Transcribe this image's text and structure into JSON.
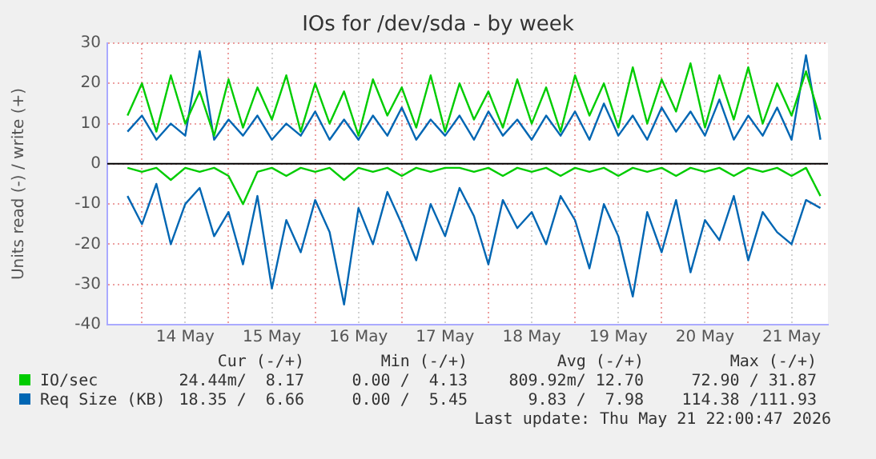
{
  "chart_data": {
    "type": "line",
    "title": "IOs for /dev/sda - by week",
    "ylabel": "Units read (-) / write (+)",
    "x": [
      "2026-05-13T20:00",
      "2026-05-14T00:00",
      "2026-05-14T04:00",
      "2026-05-14T08:00",
      "2026-05-14T12:00",
      "2026-05-14T16:00",
      "2026-05-14T20:00",
      "2026-05-15T00:00",
      "2026-05-15T04:00",
      "2026-05-15T08:00",
      "2026-05-15T12:00",
      "2026-05-15T16:00",
      "2026-05-15T20:00",
      "2026-05-16T00:00",
      "2026-05-16T04:00",
      "2026-05-16T08:00",
      "2026-05-16T12:00",
      "2026-05-16T16:00",
      "2026-05-16T20:00",
      "2026-05-17T00:00",
      "2026-05-17T04:00",
      "2026-05-17T08:00",
      "2026-05-17T12:00",
      "2026-05-17T16:00",
      "2026-05-17T20:00",
      "2026-05-18T00:00",
      "2026-05-18T04:00",
      "2026-05-18T08:00",
      "2026-05-18T12:00",
      "2026-05-18T16:00",
      "2026-05-18T20:00",
      "2026-05-19T00:00",
      "2026-05-19T04:00",
      "2026-05-19T08:00",
      "2026-05-19T12:00",
      "2026-05-19T16:00",
      "2026-05-19T20:00",
      "2026-05-20T00:00",
      "2026-05-20T04:00",
      "2026-05-20T08:00",
      "2026-05-20T12:00",
      "2026-05-20T16:00",
      "2026-05-20T20:00",
      "2026-05-21T00:00",
      "2026-05-21T04:00",
      "2026-05-21T08:00",
      "2026-05-21T12:00",
      "2026-05-21T16:00",
      "2026-05-21T20:00"
    ],
    "series": [
      {
        "name": "IO/sec",
        "color": "#00cc00",
        "values": [
          12,
          20,
          8,
          22,
          10,
          18,
          7,
          21,
          9,
          19,
          11,
          22,
          8,
          20,
          10,
          18,
          7,
          21,
          12,
          19,
          9,
          22,
          8,
          20,
          11,
          18,
          9,
          21,
          10,
          19,
          8,
          22,
          12,
          20,
          9,
          24,
          10,
          21,
          13,
          25,
          9,
          22,
          11,
          24,
          10,
          20,
          12,
          23,
          11
        ]
      },
      {
        "color": "#00cc00",
        "values": [
          -1,
          -2,
          -1,
          -4,
          -1,
          -2,
          -1,
          -3,
          -10,
          -2,
          -1,
          -3,
          -1,
          -2,
          -1,
          -4,
          -1,
          -2,
          -1,
          -3,
          -1,
          -2,
          -1,
          -1,
          -2,
          -1,
          -3,
          -1,
          -2,
          -1,
          -3,
          -1,
          -2,
          -1,
          -3,
          -1,
          -2,
          -1,
          -3,
          -1,
          -2,
          -1,
          -3,
          -1,
          -2,
          -1,
          -3,
          -1,
          -8
        ]
      },
      {
        "name": "Req Size (KB)",
        "color": "#0066b3",
        "values": [
          8,
          12,
          6,
          10,
          7,
          28,
          6,
          11,
          7,
          12,
          6,
          10,
          7,
          13,
          6,
          11,
          6,
          12,
          7,
          14,
          6,
          11,
          7,
          12,
          6,
          13,
          7,
          11,
          6,
          12,
          7,
          13,
          6,
          15,
          7,
          12,
          6,
          14,
          8,
          13,
          7,
          16,
          6,
          12,
          7,
          14,
          6,
          27,
          6
        ]
      },
      {
        "color": "#0066b3",
        "values": [
          -8,
          -15,
          -5,
          -20,
          -10,
          -6,
          -18,
          -12,
          -25,
          -8,
          -31,
          -14,
          -22,
          -9,
          -17,
          -35,
          -11,
          -20,
          -7,
          -15,
          -24,
          -10,
          -18,
          -6,
          -13,
          -25,
          -9,
          -16,
          -12,
          -20,
          -8,
          -14,
          -26,
          -10,
          -18,
          -33,
          -12,
          -22,
          -9,
          -27,
          -14,
          -19,
          -8,
          -24,
          -12,
          -17,
          -20,
          -9,
          -11
        ]
      }
    ],
    "xlim": [
      "2026-05-13T14:24",
      "2026-05-21T22:05"
    ],
    "xticks": [
      {
        "value": "2026-05-14T00:00",
        "label": null
      },
      {
        "value": "2026-05-14T12:00",
        "label": "14 May"
      },
      {
        "value": "2026-05-15T00:00",
        "label": null
      },
      {
        "value": "2026-05-15T12:00",
        "label": "15 May"
      },
      {
        "value": "2026-05-16T00:00",
        "label": null
      },
      {
        "value": "2026-05-16T12:00",
        "label": "16 May"
      },
      {
        "value": "2026-05-17T00:00",
        "label": null
      },
      {
        "value": "2026-05-17T12:00",
        "label": "17 May"
      },
      {
        "value": "2026-05-18T00:00",
        "label": null
      },
      {
        "value": "2026-05-18T12:00",
        "label": "18 May"
      },
      {
        "value": "2026-05-19T00:00",
        "label": null
      },
      {
        "value": "2026-05-19T12:00",
        "label": "19 May"
      },
      {
        "value": "2026-05-20T00:00",
        "label": null
      },
      {
        "value": "2026-05-20T12:00",
        "label": "20 May"
      },
      {
        "value": "2026-05-21T00:00",
        "label": null
      },
      {
        "value": "2026-05-21T12:00",
        "label": "21 May"
      }
    ],
    "ylim": [
      -40,
      30
    ],
    "yticks": [
      -40,
      -30,
      -20,
      -10,
      0,
      10,
      20,
      30
    ],
    "ref_lines": [
      {
        "axis": "y",
        "value": 0,
        "color": "#000000"
      }
    ],
    "grid": true,
    "legend": "bottom",
    "marker": "none",
    "line_style": "solid",
    "annotations": [
      "Cur (-/+)",
      "Min (-/+)",
      "Avg (-/+)",
      "Max (-/+)",
      "24.44m/  8.17",
      "0.00 /  4.13",
      "809.92m/ 12.70",
      "72.90 / 31.87",
      "18.35 /  6.66",
      "0.00 /  5.45",
      "9.83 /  7.98",
      "114.38 /111.93",
      "Last update: Thu May 21 22:00:47 2026"
    ]
  }
}
